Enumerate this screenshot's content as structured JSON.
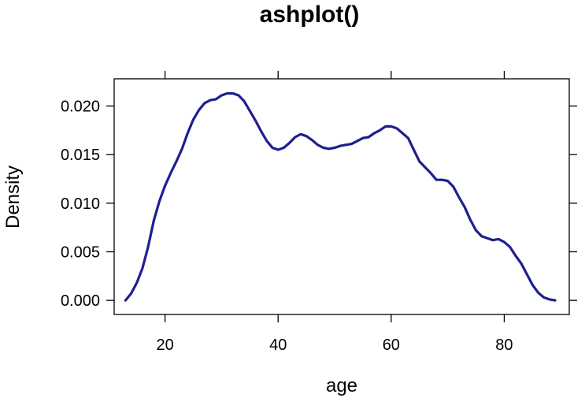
{
  "chart_data": {
    "type": "line",
    "title": "ashplot()",
    "xlabel": "age",
    "ylabel": "Density",
    "xlim": [
      11,
      91.5
    ],
    "ylim": [
      -0.00145,
      0.0228
    ],
    "grid": false,
    "line_color": "#1F1F8F",
    "x_ticks": [
      20,
      40,
      60,
      80
    ],
    "x_tick_labels": [
      "20",
      "40",
      "60",
      "80"
    ],
    "y_ticks": [
      0.0,
      0.005,
      0.01,
      0.015,
      0.02
    ],
    "y_tick_labels": [
      "0.000",
      "0.005",
      "0.010",
      "0.015",
      "0.020"
    ],
    "series": [
      {
        "x": [
          13,
          14,
          15,
          16,
          17,
          18,
          19,
          20,
          21,
          22,
          23,
          24,
          25,
          26,
          27,
          28,
          29,
          30,
          31,
          32,
          33,
          34,
          35,
          36,
          37,
          38,
          39,
          40,
          41,
          42,
          43,
          44,
          45,
          46,
          47,
          48,
          49,
          50,
          51,
          52,
          53,
          54,
          55,
          56,
          57,
          58,
          59,
          60,
          61,
          62,
          63,
          64,
          65,
          66,
          67,
          68,
          69,
          70,
          71,
          72,
          73,
          74,
          75,
          76,
          77,
          78,
          79,
          80,
          81,
          82,
          83,
          84,
          85,
          86,
          87,
          88,
          89
        ],
        "y": [
          0.0,
          0.0007,
          0.0018,
          0.0033,
          0.0055,
          0.0082,
          0.0102,
          0.0118,
          0.0131,
          0.0143,
          0.0156,
          0.0172,
          0.0186,
          0.0196,
          0.0203,
          0.0206,
          0.0207,
          0.0211,
          0.0213,
          0.0213,
          0.0211,
          0.0205,
          0.0195,
          0.0185,
          0.0174,
          0.0164,
          0.0157,
          0.0155,
          0.0157,
          0.0162,
          0.0168,
          0.0171,
          0.0169,
          0.0165,
          0.016,
          0.0157,
          0.0156,
          0.0157,
          0.0159,
          0.016,
          0.0161,
          0.0164,
          0.0167,
          0.0168,
          0.0172,
          0.0175,
          0.0179,
          0.0179,
          0.0177,
          0.0172,
          0.0167,
          0.0155,
          0.0143,
          0.0137,
          0.0131,
          0.0124,
          0.0124,
          0.0123,
          0.0117,
          0.0106,
          0.0096,
          0.0083,
          0.0072,
          0.0066,
          0.0064,
          0.0062,
          0.0063,
          0.006,
          0.0055,
          0.0046,
          0.0038,
          0.0027,
          0.0016,
          0.0008,
          0.0003,
          0.0001,
          0.0
        ]
      }
    ]
  }
}
